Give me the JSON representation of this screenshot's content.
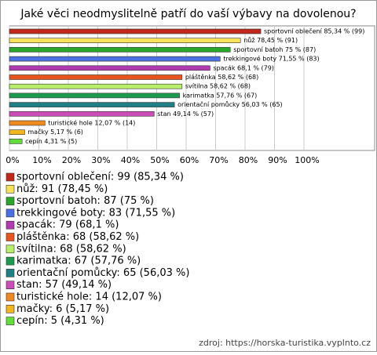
{
  "chart_data": {
    "type": "hbar",
    "title": "Jaké věci neodmyslitelně patří do vaší výbavy na dovolenou?",
    "categories": [
      "sportovní oblečení",
      "nůž",
      "sportovní batoh",
      "trekkingové boty",
      "spacák",
      "pláštěnka",
      "svítilna",
      "karimatka",
      "orientační pomůcky",
      "stan",
      "turistické hole",
      "mačky",
      "cepín"
    ],
    "values": [
      85.34,
      78.45,
      75,
      71.55,
      68.1,
      58.62,
      58.62,
      57.76,
      56.03,
      49.14,
      12.07,
      5.17,
      4.31
    ],
    "value_labels": [
      "sportovní oblečení 85,34 % (99)",
      "nůž 78,45 % (91)",
      "sportovní batoh 75 % (87)",
      "trekkingové boty 71,55 % (83)",
      "spacák 68,1 % (79)",
      "pláštěnka 58,62 % (68)",
      "svítilna 58,62 % (68)",
      "karimatka 57,76 % (67)",
      "orientační pomůcky 56,03 % (65)",
      "stan 49,14 % (57)",
      "turistické hole 12,07 % (14)",
      "mačky 5,17 % (6)",
      "cepín 4,31 % (5)"
    ],
    "legend_labels": [
      "sportovní oblečení: 99 (85,34 %)",
      "nůž: 91 (78,45 %)",
      "sportovní batoh: 87 (75 %)",
      "trekkingové boty: 83 (71,55 %)",
      "spacák: 79 (68,1 %)",
      "pláštěnka: 68 (58,62 %)",
      "svítilna: 68 (58,62 %)",
      "karimatka: 67 (57,76 %)",
      "orientační pomůcky: 65 (56,03 %)",
      "stan: 57 (49,14 %)",
      "turistické hole: 14 (12,07 %)",
      "mačky: 6 (5,17 %)",
      "cepín: 5 (4,31 %)"
    ],
    "colors": [
      "#c0281c",
      "#f5e25a",
      "#2aa62a",
      "#4a6fe0",
      "#b03ab0",
      "#e8541e",
      "#b7ee6a",
      "#1e9a50",
      "#1f7f84",
      "#cc4cb8",
      "#ee8a1e",
      "#f2b61e",
      "#62dd3a"
    ],
    "xlim": [
      0,
      100
    ],
    "xticks": [
      {
        "value": 0,
        "label": "0%"
      },
      {
        "value": 10,
        "label": "10%"
      },
      {
        "value": 20,
        "label": "20%"
      },
      {
        "value": 30,
        "label": "30%"
      },
      {
        "value": 40,
        "label": "40%"
      },
      {
        "value": 50,
        "label": "50%"
      },
      {
        "value": 60,
        "label": "60%"
      },
      {
        "value": 70,
        "label": "70%"
      },
      {
        "value": 80,
        "label": "80%"
      },
      {
        "value": 90,
        "label": "90%"
      },
      {
        "value": 100,
        "label": "100%"
      }
    ],
    "grid": true,
    "source": "zdroj: https://horska-turistika.vyplnto.cz"
  }
}
